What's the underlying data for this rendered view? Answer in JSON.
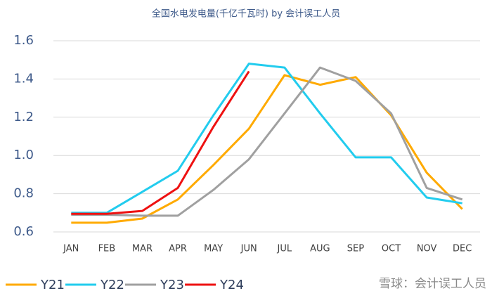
{
  "chart_data": {
    "type": "line",
    "title": "全国水电发电量(千亿千瓦时) by 会计误工人员",
    "categories": [
      "JAN",
      "FEB",
      "MAR",
      "APR",
      "MAY",
      "JUN",
      "JUL",
      "AUG",
      "SEP",
      "OCT",
      "NOV",
      "DEC"
    ],
    "series": [
      {
        "name": "Y21",
        "color": "#ffaa00",
        "values": [
          0.648,
          0.648,
          0.67,
          0.77,
          0.95,
          1.14,
          1.42,
          1.37,
          1.41,
          1.21,
          0.91,
          0.72
        ]
      },
      {
        "name": "Y22",
        "color": "#22ccee",
        "values": [
          0.7,
          0.7,
          0.81,
          0.92,
          1.21,
          1.48,
          1.46,
          1.22,
          0.99,
          0.99,
          0.78,
          0.75
        ]
      },
      {
        "name": "Y23",
        "color": "#a0a0a0",
        "values": [
          0.69,
          0.69,
          0.685,
          0.685,
          0.82,
          0.98,
          1.22,
          1.46,
          1.39,
          1.22,
          0.83,
          0.77
        ]
      },
      {
        "name": "Y24",
        "color": "#ee1111",
        "values": [
          0.695,
          0.695,
          0.71,
          0.83,
          1.15,
          1.44,
          null,
          null,
          null,
          null,
          null,
          null
        ]
      }
    ],
    "ylim": [
      0.6,
      1.6
    ],
    "yticks": [
      0.6,
      0.8,
      {
        "value": 1,
        "label": "1.0"
      },
      1.2,
      1.4,
      1.6
    ],
    "grid": true,
    "legend": "bottom-left",
    "annotations": [
      "雪球：会计误工人员"
    ]
  }
}
